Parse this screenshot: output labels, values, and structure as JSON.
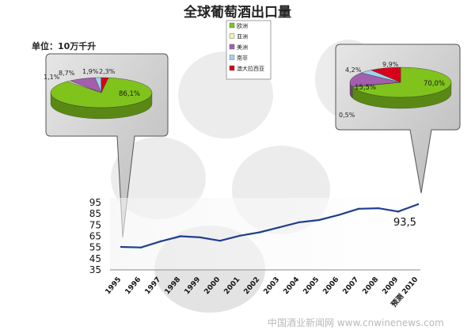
{
  "title": "全球葡萄酒出口量",
  "unit_label": "单位：10万千升",
  "colors": {
    "europe": "#7fc31c",
    "asia": "#f1f1b4",
    "america": "#a15fae",
    "south_africa": "#9fd4ee",
    "australia": "#d9001b",
    "line": "#1f3f8f"
  },
  "legend": [
    {
      "label": "欧洲",
      "color": "#7fc31c"
    },
    {
      "label": "亚洲",
      "color": "#f1f1b4"
    },
    {
      "label": "美洲",
      "color": "#a15fae"
    },
    {
      "label": "南非",
      "color": "#9fd4ee"
    },
    {
      "label": "澳大拉西亚",
      "color": "#d9001b"
    }
  ],
  "watermark": "中国酒业新闻网 www.cnwinenews.com",
  "chart_data": [
    {
      "type": "line",
      "categories": [
        "1995",
        "1996",
        "1997",
        "1998",
        "1999",
        "2000",
        "2001",
        "2002",
        "2003",
        "2004",
        "2005",
        "2006",
        "2007",
        "2008",
        "2009",
        "预测 2010"
      ],
      "values": [
        55.5,
        55,
        60.5,
        65,
        64,
        61,
        65.5,
        68.5,
        73,
        77.5,
        79.5,
        84,
        89.5,
        90,
        87,
        93.5
      ],
      "yticks": [
        35,
        45,
        55,
        65,
        75,
        85,
        95
      ],
      "ylim": [
        35,
        95
      ],
      "end_label": "93,5"
    },
    {
      "type": "pie",
      "context": "1995",
      "slices": [
        {
          "series": "欧洲",
          "label": "86,1%",
          "value": 86.1
        },
        {
          "series": "亚洲",
          "label": "1,1%",
          "value": 1.1
        },
        {
          "series": "美洲",
          "label": "8,7%",
          "value": 8.7
        },
        {
          "series": "南非",
          "label": "1,9%",
          "value": 1.9
        },
        {
          "series": "澳大拉西亚",
          "label": "2,3%",
          "value": 2.3
        }
      ]
    },
    {
      "type": "pie",
      "context": "预测 2010",
      "slices": [
        {
          "series": "欧洲",
          "label": "70,0%",
          "value": 70.0
        },
        {
          "series": "亚洲",
          "label": "0,5%",
          "value": 0.5
        },
        {
          "series": "美洲",
          "label": "15,5%",
          "value": 15.5
        },
        {
          "series": "南非",
          "label": "4,2%",
          "value": 4.2
        },
        {
          "series": "澳大拉西亚",
          "label": "9,9%",
          "value": 9.9
        }
      ]
    }
  ]
}
